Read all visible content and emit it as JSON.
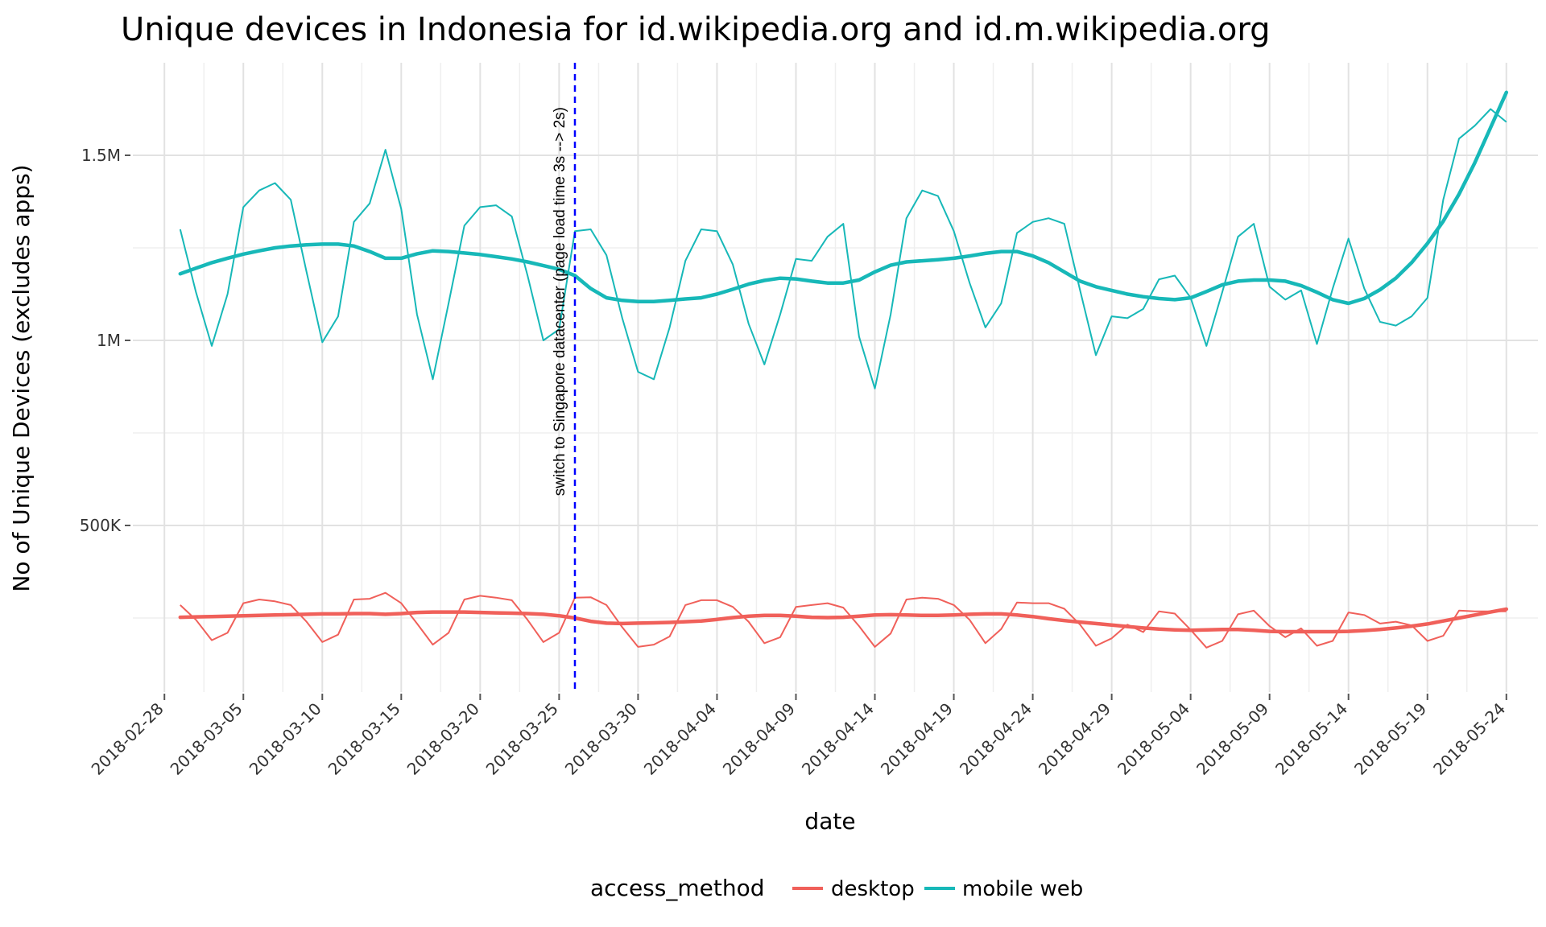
{
  "chart_data": {
    "type": "line",
    "title": "Unique devices in Indonesia for id.wikipedia.org and id.m.wikipedia.org",
    "xlabel": "date",
    "ylabel": "No of Unique Devices (excludes apps)",
    "x_ticks": [
      "2018-02-28",
      "2018-03-05",
      "2018-03-10",
      "2018-03-15",
      "2018-03-20",
      "2018-03-25",
      "2018-03-30",
      "2018-04-04",
      "2018-04-09",
      "2018-04-14",
      "2018-04-19",
      "2018-04-24",
      "2018-04-29",
      "2018-05-04",
      "2018-05-09",
      "2018-05-14",
      "2018-05-19",
      "2018-05-24"
    ],
    "y_ticks": [
      {
        "value": 500000,
        "label": "500K"
      },
      {
        "value": 1000000,
        "label": "1M"
      },
      {
        "value": 1500000,
        "label": "1.5M"
      }
    ],
    "xlim": [
      "2018-02-26",
      "2018-05-26"
    ],
    "ylim": [
      50000,
      1750000
    ],
    "grid": true,
    "legend": {
      "title": "access_method",
      "position": "bottom"
    },
    "annotation": {
      "date": "2018-03-26",
      "text": "switch to Singapore datacenter (page load time 3s --> 2s)",
      "color": "#0000ff"
    },
    "start_date": "2018-03-01",
    "series": [
      {
        "name": "mobile web",
        "color": "#17b8b8",
        "values": [
          1300000,
          1130000,
          985000,
          1125000,
          1360000,
          1405000,
          1425000,
          1380000,
          1185000,
          995000,
          1065000,
          1320000,
          1370000,
          1515000,
          1355000,
          1070000,
          895000,
          1100000,
          1310000,
          1360000,
          1365000,
          1335000,
          1175000,
          1000000,
          1030000,
          1295000,
          1300000,
          1230000,
          1060000,
          915000,
          895000,
          1035000,
          1215000,
          1300000,
          1295000,
          1205000,
          1045000,
          935000,
          1070000,
          1220000,
          1215000,
          1280000,
          1315000,
          1010000,
          870000,
          1070000,
          1330000,
          1405000,
          1390000,
          1295000,
          1155000,
          1035000,
          1100000,
          1290000,
          1320000,
          1330000,
          1315000,
          1135000,
          960000,
          1065000,
          1060000,
          1085000,
          1165000,
          1175000,
          1115000,
          985000,
          1130000,
          1280000,
          1315000,
          1145000,
          1110000,
          1135000,
          990000,
          1140000,
          1275000,
          1140000,
          1050000,
          1040000,
          1065000,
          1115000,
          1380000,
          1545000,
          1580000,
          1625000,
          1590000
        ],
        "trend": [
          1180000,
          1195000,
          1210000,
          1222000,
          1233000,
          1242000,
          1250000,
          1255000,
          1258000,
          1260000,
          1260000,
          1255000,
          1240000,
          1222000,
          1222000,
          1234000,
          1242000,
          1240000,
          1236000,
          1232000,
          1226000,
          1220000,
          1212000,
          1202000,
          1192000,
          1175000,
          1140000,
          1115000,
          1108000,
          1105000,
          1105000,
          1108000,
          1112000,
          1115000,
          1125000,
          1138000,
          1152000,
          1162000,
          1168000,
          1166000,
          1160000,
          1155000,
          1155000,
          1163000,
          1185000,
          1203000,
          1212000,
          1215000,
          1218000,
          1222000,
          1228000,
          1235000,
          1240000,
          1240000,
          1228000,
          1210000,
          1185000,
          1160000,
          1145000,
          1135000,
          1125000,
          1118000,
          1113000,
          1110000,
          1115000,
          1132000,
          1150000,
          1160000,
          1163000,
          1163000,
          1160000,
          1148000,
          1130000,
          1110000,
          1100000,
          1113000,
          1137000,
          1168000,
          1210000,
          1262000,
          1322000,
          1395000,
          1480000,
          1575000,
          1670000
        ]
      },
      {
        "name": "desktop",
        "color": "#f0605a",
        "values": [
          285000,
          245000,
          190000,
          210000,
          290000,
          300000,
          295000,
          285000,
          240000,
          185000,
          205000,
          300000,
          302000,
          318000,
          290000,
          235000,
          178000,
          210000,
          300000,
          310000,
          305000,
          298000,
          245000,
          185000,
          210000,
          305000,
          306000,
          285000,
          225000,
          172000,
          178000,
          200000,
          285000,
          298000,
          298000,
          280000,
          240000,
          182000,
          198000,
          280000,
          285000,
          290000,
          278000,
          228000,
          172000,
          208000,
          300000,
          305000,
          302000,
          285000,
          245000,
          182000,
          220000,
          292000,
          290000,
          290000,
          275000,
          232000,
          175000,
          195000,
          232000,
          212000,
          268000,
          262000,
          218000,
          170000,
          188000,
          260000,
          270000,
          228000,
          198000,
          222000,
          175000,
          188000,
          265000,
          258000,
          235000,
          240000,
          230000,
          188000,
          202000,
          270000,
          268000,
          268000,
          268000
        ],
        "trend": [
          252000,
          253000,
          254000,
          255000,
          256000,
          257000,
          258000,
          259000,
          260000,
          261000,
          261000,
          262000,
          262000,
          260000,
          262000,
          265000,
          266000,
          266000,
          266000,
          265000,
          264000,
          263000,
          262000,
          260000,
          256000,
          250000,
          241000,
          236000,
          235000,
          236000,
          237000,
          238000,
          240000,
          242000,
          246000,
          251000,
          255000,
          257000,
          257000,
          255000,
          252000,
          251000,
          252000,
          255000,
          258000,
          259000,
          258000,
          257000,
          257000,
          258000,
          260000,
          261000,
          261000,
          258000,
          254000,
          248000,
          243000,
          239000,
          235000,
          231000,
          227000,
          223000,
          220000,
          218000,
          217000,
          218000,
          219000,
          219000,
          217000,
          214000,
          213000,
          213000,
          213000,
          213000,
          214000,
          216000,
          219000,
          223000,
          228000,
          234000,
          242000,
          250000,
          258000,
          266000,
          274000
        ]
      }
    ]
  }
}
